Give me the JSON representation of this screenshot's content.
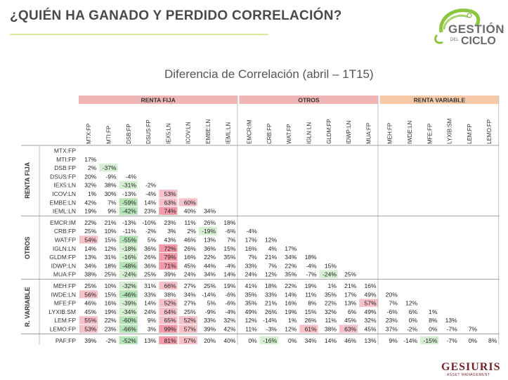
{
  "page": {
    "title": "¿QUIÉN HA GANADO Y PERDIDO CORRELACIÓN?",
    "brand": "GESTIÓN DEL CICLO",
    "brand_line1": "GESTIÓN",
    "brand_del": "DEL",
    "brand_line2": "CICLO",
    "footer_brand": "GESIURIS",
    "footer_sub": "ASSET MANAGEMENT",
    "colors": {
      "accent_rule": "#d9ec9c",
      "renta_fija": "#f0b6b6",
      "otros": "#f0b6b6",
      "renta_variable": "#f5c9a8",
      "positive_high": "#f0a8b4",
      "negative_high": "#c9ecc9",
      "footer": "#7a1e2a"
    }
  },
  "chart_data": {
    "type": "table",
    "title": "Diferencia de Correlación (abril – 1T15)",
    "groups": [
      {
        "name": "RENTA FIJA",
        "row_label": "RENTA FIJA",
        "start": 0,
        "count": 8
      },
      {
        "name": "OTROS",
        "row_label": "OTROS",
        "start": 8,
        "count": 7
      },
      {
        "name": "RENTA VARIABLE",
        "row_label": "R. VARIABLE",
        "start": 15,
        "count": 6
      }
    ],
    "columns": [
      "MTX:FP",
      "MTI:FP",
      "DSB:FP",
      "DSUS:FP",
      "IEX5:LN",
      "ICOV:LN",
      "EMBE:LN",
      "IEML:LN",
      "EMCR:IM",
      "CRB:FP",
      "WAT:FP",
      "IGLN:LN",
      "GLDM:FP",
      "IDWP:LN",
      "MUA:FP",
      "MEH:FP",
      "IWDE:LN",
      "MFE:FP",
      "LYXIB:SM",
      "LEM:FP",
      "LEMO:FP"
    ],
    "rows": [
      {
        "name": "MTX:FP",
        "values": []
      },
      {
        "name": "MTI:FP",
        "values": [
          "17%"
        ]
      },
      {
        "name": "DSB:FP",
        "values": [
          "2%",
          "-37%"
        ]
      },
      {
        "name": "DSUS:FP",
        "values": [
          "20%",
          "-9%",
          "-4%"
        ]
      },
      {
        "name": "IEX5:LN",
        "values": [
          "32%",
          "38%",
          "-31%",
          "-2%"
        ]
      },
      {
        "name": "ICOV:LN",
        "values": [
          "1%",
          "30%",
          "-13%",
          "-4%",
          "53%"
        ]
      },
      {
        "name": "EMBE:LN",
        "values": [
          "42%",
          "7%",
          "-59%",
          "14%",
          "63%",
          "60%"
        ]
      },
      {
        "name": "IEML:LN",
        "values": [
          "19%",
          "9%",
          "-42%",
          "23%",
          "74%",
          "40%",
          "34%"
        ]
      },
      {
        "name": "EMCR:IM",
        "values": [
          "22%",
          "21%",
          "-13%",
          "-10%",
          "23%",
          "11%",
          "26%",
          "18%"
        ]
      },
      {
        "name": "CRB:FP",
        "values": [
          "25%",
          "10%",
          "-11%",
          "-2%",
          "3%",
          "2%",
          "-19%",
          "-6%",
          "-4%"
        ]
      },
      {
        "name": "WAT:FP",
        "values": [
          "54%",
          "15%",
          "-55%",
          "5%",
          "43%",
          "46%",
          "13%",
          "7%",
          "17%",
          "12%"
        ]
      },
      {
        "name": "IGLN:LN",
        "values": [
          "14%",
          "12%",
          "-18%",
          "36%",
          "72%",
          "26%",
          "36%",
          "15%",
          "16%",
          "4%",
          "17%"
        ]
      },
      {
        "name": "GLDM:FP",
        "values": [
          "13%",
          "31%",
          "-16%",
          "26%",
          "79%",
          "16%",
          "22%",
          "35%",
          "7%",
          "21%",
          "34%",
          "18%"
        ]
      },
      {
        "name": "IDWP:LN",
        "values": [
          "34%",
          "18%",
          "-48%",
          "36%",
          "71%",
          "45%",
          "44%",
          "-4%",
          "33%",
          "7%",
          "22%",
          "-4%",
          "15%"
        ]
      },
      {
        "name": "MUA:FP",
        "values": [
          "38%",
          "25%",
          "-24%",
          "25%",
          "39%",
          "24%",
          "34%",
          "14%",
          "24%",
          "12%",
          "35%",
          "-7%",
          "-24%",
          "25%"
        ]
      },
      {
        "name": "MEH:FP",
        "values": [
          "25%",
          "10%",
          "-32%",
          "31%",
          "66%",
          "27%",
          "25%",
          "19%",
          "41%",
          "18%",
          "22%",
          "19%",
          "1%",
          "21%",
          "16%"
        ]
      },
      {
        "name": "IWDE:LN",
        "values": [
          "56%",
          "15%",
          "-46%",
          "33%",
          "38%",
          "34%",
          "-14%",
          "-6%",
          "35%",
          "33%",
          "14%",
          "11%",
          "35%",
          "17%",
          "49%",
          "20%"
        ]
      },
      {
        "name": "MFE:FP",
        "values": [
          "46%",
          "16%",
          "-39%",
          "14%",
          "52%",
          "27%",
          "5%",
          "-6%",
          "35%",
          "21%",
          "16%",
          "8%",
          "22%",
          "13%",
          "57%",
          "7%",
          "12%"
        ]
      },
      {
        "name": "LYXIB:SM",
        "values": [
          "45%",
          "19%",
          "-34%",
          "24%",
          "64%",
          "25%",
          "-9%",
          "-4%",
          "49%",
          "26%",
          "19%",
          "15%",
          "32%",
          "6%",
          "49%",
          "-6%",
          "6%",
          "1%"
        ]
      },
      {
        "name": "LEM:FP",
        "values": [
          "55%",
          "22%",
          "-60%",
          "9%",
          "65%",
          "52%",
          "33%",
          "32%",
          "12%",
          "-14%",
          "1%",
          "26%",
          "11%",
          "45%",
          "32%",
          "23%",
          "0%",
          "8%",
          "13%"
        ]
      },
      {
        "name": "LEMO:FP",
        "values": [
          "53%",
          "23%",
          "-66%",
          "3%",
          "99%",
          "57%",
          "39%",
          "42%",
          "11%",
          "-3%",
          "12%",
          "61%",
          "38%",
          "63%",
          "45%",
          "37%",
          "-2%",
          "0%",
          "-7%",
          "7%"
        ]
      },
      {
        "name": "PAF:FP",
        "values": [
          "39%",
          "-2%",
          "-52%",
          "13%",
          "81%",
          "57%",
          "20%",
          "40%",
          "0%",
          "-16%",
          "0%",
          "34%",
          "14%",
          "46%",
          "13%",
          "9%",
          "-14%",
          "-15%",
          "-7%",
          "0%",
          "8%"
        ]
      }
    ]
  }
}
